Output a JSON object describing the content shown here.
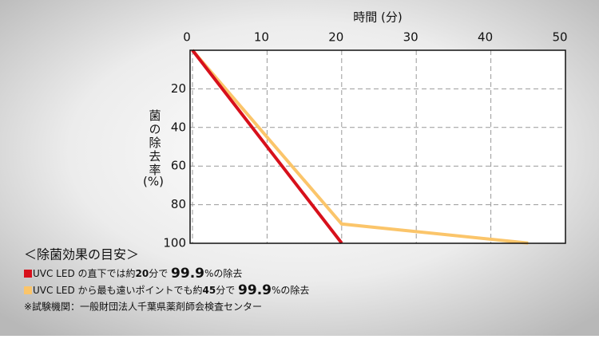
{
  "chart_data": {
    "type": "line",
    "title": "時間 (分)",
    "y_label": "菌の除去率",
    "y_unit": "(%)",
    "xlim": [
      0,
      50
    ],
    "xticks": [
      0,
      10,
      20,
      30,
      40,
      50
    ],
    "ylim": [
      0,
      100
    ],
    "yticks": [
      20,
      40,
      60,
      80,
      100
    ],
    "y_inverted": true,
    "x_axis_position": "top",
    "grid": true,
    "series": [
      {
        "name": "UVC LED の直下",
        "color": "#d7101b",
        "x": [
          0,
          20
        ],
        "values": [
          0,
          99.9
        ]
      },
      {
        "name": "UVC LED から最も遠いポイント",
        "color": "#fbc56a",
        "x": [
          0,
          20,
          45
        ],
        "values": [
          0,
          90,
          99.9
        ]
      }
    ]
  },
  "notes": {
    "heading": "＜除菌効果の目安＞",
    "items": [
      {
        "parts": [
          "UVC LED の直下では約",
          "20",
          "分で ",
          "99.9",
          "%の除去"
        ]
      },
      {
        "parts": [
          "UVC LED から最も遠いポイントでも約",
          "45",
          "分で ",
          "99.9",
          "%の除去"
        ]
      }
    ],
    "footnote": "※試験機関：一般財団法人千葉県薬剤師会検査センター"
  }
}
